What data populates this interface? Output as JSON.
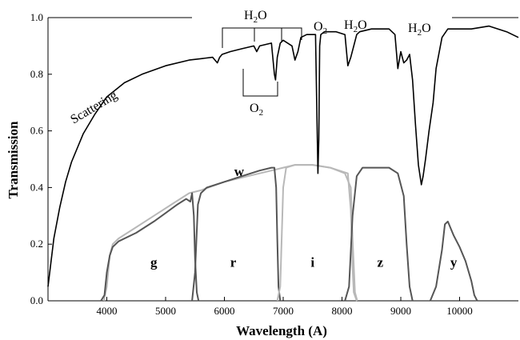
{
  "chart_data": {
    "type": "line",
    "xlabel": "Wavelength (A)",
    "ylabel": "Transmission",
    "xlim": [
      3000,
      11000
    ],
    "ylim": [
      0,
      1.0
    ],
    "x_ticks": [
      4000,
      5000,
      6000,
      7000,
      8000,
      9000,
      10000
    ],
    "y_ticks": [
      0.0,
      0.2,
      0.4,
      0.6,
      0.8,
      1.0
    ],
    "grid": false,
    "annotations": {
      "scattering": "Scattering",
      "h2o_left": "H",
      "h2o_left_sub": "2",
      "h2o_left_tail": "O",
      "o2_bottom": "O",
      "o2_bottom_sub": "2",
      "o2_top": "O",
      "o2_top_sub": "2",
      "h2o_mid": "H",
      "h2o_mid_sub": "2",
      "h2o_mid_tail": "O",
      "h2o_right": "H",
      "h2o_right_sub": "2",
      "h2o_right_tail": "O"
    },
    "atmosphere": {
      "color": "#000000",
      "x": [
        3000,
        3100,
        3200,
        3300,
        3400,
        3600,
        3800,
        4000,
        4300,
        4600,
        5000,
        5400,
        5800,
        5880,
        5920,
        5960,
        6100,
        6300,
        6500,
        6550,
        6600,
        6800,
        6850,
        6870,
        6900,
        6950,
        7000,
        7150,
        7200,
        7250,
        7300,
        7400,
        7550,
        7590,
        7605,
        7620,
        7640,
        7700,
        7900,
        8050,
        8100,
        8150,
        8200,
        8250,
        8300,
        8500,
        8800,
        8900,
        8950,
        9000,
        9050,
        9100,
        9150,
        9200,
        9250,
        9300,
        9350,
        9380,
        9420,
        9480,
        9550,
        9600,
        9700,
        9800,
        10000,
        10200,
        10500,
        10800,
        11000
      ],
      "y": [
        0.05,
        0.22,
        0.33,
        0.42,
        0.49,
        0.59,
        0.66,
        0.72,
        0.77,
        0.8,
        0.83,
        0.85,
        0.86,
        0.84,
        0.86,
        0.87,
        0.88,
        0.89,
        0.9,
        0.88,
        0.9,
        0.91,
        0.8,
        0.78,
        0.86,
        0.91,
        0.92,
        0.9,
        0.85,
        0.88,
        0.93,
        0.94,
        0.94,
        0.45,
        0.57,
        0.9,
        0.94,
        0.95,
        0.95,
        0.94,
        0.83,
        0.86,
        0.9,
        0.94,
        0.95,
        0.96,
        0.96,
        0.94,
        0.82,
        0.88,
        0.84,
        0.85,
        0.87,
        0.78,
        0.62,
        0.48,
        0.41,
        0.44,
        0.5,
        0.6,
        0.7,
        0.82,
        0.93,
        0.96,
        0.96,
        0.96,
        0.97,
        0.95,
        0.93
      ]
    },
    "series": [
      {
        "name": "w",
        "color": "#b8b8b8",
        "x": [
          3950,
          4000,
          4050,
          4100,
          4200,
          4500,
          4800,
          5100,
          5400,
          5600,
          6000,
          6400,
          6800,
          7000,
          7200,
          7500,
          7800,
          8100,
          8150,
          8180,
          8200,
          8250
        ],
        "y": [
          0.0,
          0.05,
          0.16,
          0.2,
          0.22,
          0.26,
          0.3,
          0.34,
          0.38,
          0.39,
          0.42,
          0.44,
          0.46,
          0.47,
          0.48,
          0.48,
          0.47,
          0.45,
          0.32,
          0.12,
          0.03,
          0.0
        ]
      },
      {
        "name": "g",
        "color": "#555555",
        "x": [
          3900,
          3960,
          4000,
          4050,
          4100,
          4200,
          4500,
          4800,
          5000,
          5200,
          5350,
          5420,
          5450,
          5480,
          5500,
          5530,
          5560
        ],
        "y": [
          0.0,
          0.02,
          0.1,
          0.16,
          0.19,
          0.21,
          0.24,
          0.28,
          0.31,
          0.34,
          0.36,
          0.35,
          0.38,
          0.3,
          0.15,
          0.03,
          0.0
        ]
      },
      {
        "name": "r",
        "color": "#555555",
        "x": [
          5450,
          5500,
          5550,
          5600,
          5700,
          6000,
          6300,
          6600,
          6800,
          6850,
          6880,
          6900,
          6920,
          6950
        ],
        "y": [
          0.0,
          0.1,
          0.34,
          0.38,
          0.4,
          0.42,
          0.44,
          0.46,
          0.47,
          0.47,
          0.4,
          0.22,
          0.05,
          0.0
        ]
      },
      {
        "name": "i",
        "color": "#b8b8b8",
        "x": [
          6900,
          6950,
          7000,
          7050,
          7200,
          7500,
          7800,
          8050,
          8150,
          8180,
          8220,
          8260
        ],
        "y": [
          0.0,
          0.05,
          0.4,
          0.47,
          0.48,
          0.48,
          0.47,
          0.45,
          0.4,
          0.22,
          0.03,
          0.0
        ]
      },
      {
        "name": "z",
        "color": "#555555",
        "x": [
          8050,
          8120,
          8180,
          8250,
          8350,
          8600,
          8800,
          8950,
          9050,
          9100,
          9150,
          9200
        ],
        "y": [
          0.0,
          0.05,
          0.3,
          0.44,
          0.47,
          0.47,
          0.47,
          0.45,
          0.37,
          0.2,
          0.05,
          0.0
        ]
      },
      {
        "name": "y",
        "color": "#555555",
        "x": [
          9500,
          9600,
          9700,
          9750,
          9800,
          9900,
          10000,
          10100,
          10200,
          10250,
          10300
        ],
        "y": [
          0.0,
          0.05,
          0.18,
          0.27,
          0.28,
          0.23,
          0.19,
          0.14,
          0.07,
          0.02,
          0.0
        ]
      }
    ],
    "band_labels": [
      {
        "name": "g",
        "x": 4800,
        "y": 0.12
      },
      {
        "name": "r",
        "x": 6150,
        "y": 0.12
      },
      {
        "name": "i",
        "x": 7500,
        "y": 0.12
      },
      {
        "name": "z",
        "x": 8650,
        "y": 0.12
      },
      {
        "name": "y",
        "x": 9900,
        "y": 0.12
      },
      {
        "name": "w",
        "x": 6250,
        "y": 0.44
      }
    ]
  }
}
